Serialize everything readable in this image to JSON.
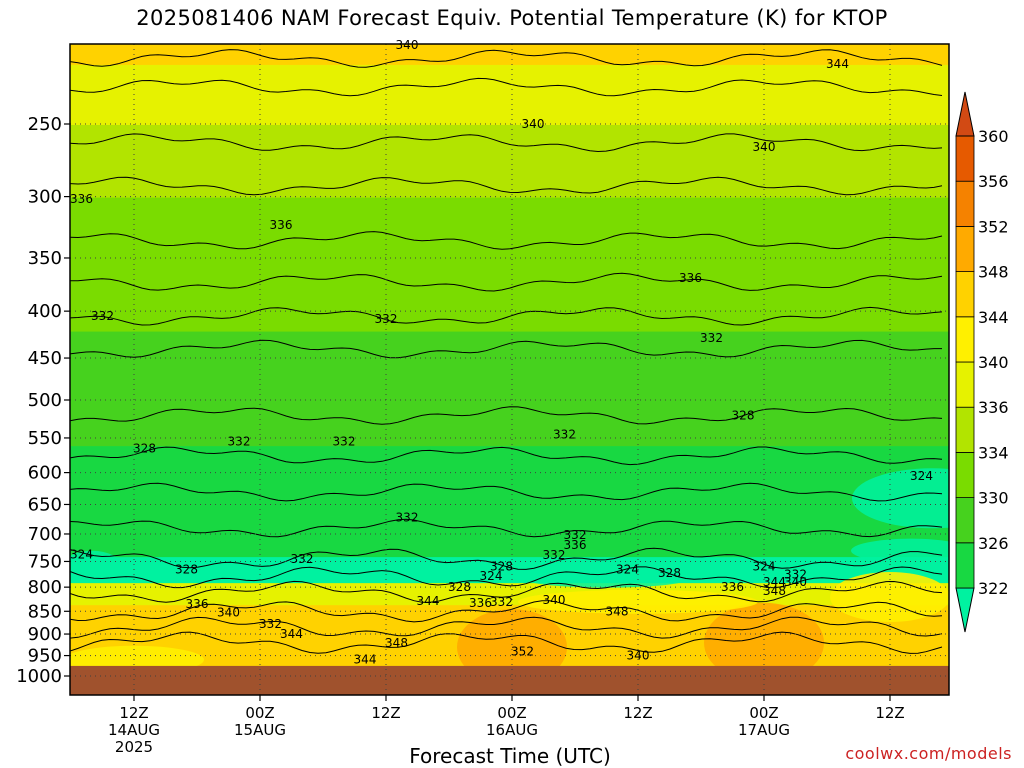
{
  "chart_data": {
    "type": "heatmap",
    "title": "2025081406 NAM Forecast Equiv. Potential Temperature (K) for KTOP",
    "xlabel": "Forecast Time (UTC)",
    "ylabel": "",
    "y_scale": "log-pressure",
    "ylim": [
      1000,
      200
    ],
    "y_ticks": [
      250,
      300,
      350,
      400,
      450,
      500,
      550,
      600,
      650,
      700,
      750,
      800,
      850,
      900,
      950,
      1000
    ],
    "xlim": [
      "2025-08-14 06Z",
      "2025-08-17 18Z"
    ],
    "x_ticks": [
      {
        "time": "2025-08-14 12Z",
        "lines": [
          "12Z",
          "14AUG",
          "2025"
        ]
      },
      {
        "time": "2025-08-15 00Z",
        "lines": [
          "00Z",
          "15AUG"
        ]
      },
      {
        "time": "2025-08-15 12Z",
        "lines": [
          "12Z"
        ]
      },
      {
        "time": "2025-08-16 00Z",
        "lines": [
          "00Z",
          "16AUG"
        ]
      },
      {
        "time": "2025-08-16 12Z",
        "lines": [
          "12Z"
        ]
      },
      {
        "time": "2025-08-17 00Z",
        "lines": [
          "00Z",
          "17AUG"
        ]
      },
      {
        "time": "2025-08-17 12Z",
        "lines": [
          "12Z"
        ]
      }
    ],
    "grid": true,
    "colorbar": {
      "placement": "right",
      "ticks": [
        322,
        326,
        330,
        334,
        336,
        340,
        344,
        348,
        352,
        356,
        360
      ],
      "colors": [
        "#00f2a0",
        "#18d842",
        "#46d21e",
        "#7adc00",
        "#b2e400",
        "#e6f200",
        "#fff000",
        "#ffd200",
        "#ffaa00",
        "#f58200",
        "#e65a00",
        "#d24a14"
      ]
    },
    "ground_color": "#a0522d",
    "ground_pressure_top": 975,
    "contour_labels": [
      {
        "text": "340",
        "time": "2025-08-15 14Z",
        "p": 205
      },
      {
        "text": "344",
        "time": "2025-08-17 07Z",
        "p": 215
      },
      {
        "text": "340",
        "time": "2025-08-16 02Z",
        "p": 250
      },
      {
        "text": "340",
        "time": "2025-08-17 00Z",
        "p": 265
      },
      {
        "text": "336",
        "time": "2025-08-14 07Z",
        "p": 302
      },
      {
        "text": "336",
        "time": "2025-08-15 02Z",
        "p": 322
      },
      {
        "text": "336",
        "time": "2025-08-16 17Z",
        "p": 368
      },
      {
        "text": "332",
        "time": "2025-08-14 09Z",
        "p": 405
      },
      {
        "text": "332",
        "time": "2025-08-15 12Z",
        "p": 408
      },
      {
        "text": "332",
        "time": "2025-08-16 19Z",
        "p": 428
      },
      {
        "text": "328",
        "time": "2025-08-16 22Z",
        "p": 520
      },
      {
        "text": "328",
        "time": "2025-08-14 13Z",
        "p": 565
      },
      {
        "text": "332",
        "time": "2025-08-14 22Z",
        "p": 555
      },
      {
        "text": "332",
        "time": "2025-08-15 08Z",
        "p": 555
      },
      {
        "text": "332",
        "time": "2025-08-16 05Z",
        "p": 545
      },
      {
        "text": "324",
        "time": "2025-08-17 15Z",
        "p": 605
      },
      {
        "text": "332",
        "time": "2025-08-15 14Z",
        "p": 672
      },
      {
        "text": "332",
        "time": "2025-08-16 06Z",
        "p": 702
      },
      {
        "text": "336",
        "time": "2025-08-16 06Z",
        "p": 720
      },
      {
        "text": "332",
        "time": "2025-08-15 04Z",
        "p": 745
      },
      {
        "text": "332",
        "time": "2025-08-16 04Z",
        "p": 738
      },
      {
        "text": "324",
        "time": "2025-08-14 07Z",
        "p": 737
      },
      {
        "text": "328",
        "time": "2025-08-14 17Z",
        "p": 765
      },
      {
        "text": "328",
        "time": "2025-08-15 23Z",
        "p": 760
      },
      {
        "text": "324",
        "time": "2025-08-15 22Z",
        "p": 778
      },
      {
        "text": "324",
        "time": "2025-08-16 11Z",
        "p": 765
      },
      {
        "text": "328",
        "time": "2025-08-16 15Z",
        "p": 772
      },
      {
        "text": "324",
        "time": "2025-08-17 00Z",
        "p": 760
      },
      {
        "text": "332",
        "time": "2025-08-17 03Z",
        "p": 775
      },
      {
        "text": "344",
        "time": "2025-08-17 01Z",
        "p": 790
      },
      {
        "text": "340",
        "time": "2025-08-17 03Z",
        "p": 790
      },
      {
        "text": "336",
        "time": "2025-08-16 21Z",
        "p": 800
      },
      {
        "text": "348",
        "time": "2025-08-17 01Z",
        "p": 808
      },
      {
        "text": "328",
        "time": "2025-08-15 19Z",
        "p": 800
      },
      {
        "text": "344",
        "time": "2025-08-15 16Z",
        "p": 828
      },
      {
        "text": "336",
        "time": "2025-08-15 21Z",
        "p": 832
      },
      {
        "text": "332",
        "time": "2025-08-15 23Z",
        "p": 830
      },
      {
        "text": "340",
        "time": "2025-08-16 04Z",
        "p": 826
      },
      {
        "text": "348",
        "time": "2025-08-16 10Z",
        "p": 850
      },
      {
        "text": "336",
        "time": "2025-08-14 18Z",
        "p": 835
      },
      {
        "text": "340",
        "time": "2025-08-14 21Z",
        "p": 853
      },
      {
        "text": "332",
        "time": "2025-08-15 01Z",
        "p": 878
      },
      {
        "text": "344",
        "time": "2025-08-15 03Z",
        "p": 900
      },
      {
        "text": "348",
        "time": "2025-08-15 13Z",
        "p": 920
      },
      {
        "text": "352",
        "time": "2025-08-16 01Z",
        "p": 940
      },
      {
        "text": "344",
        "time": "2025-08-15 10Z",
        "p": 960
      },
      {
        "text": "340",
        "time": "2025-08-16 12Z",
        "p": 950
      }
    ]
  },
  "footer": {
    "credit": "coolwx.com/models"
  }
}
